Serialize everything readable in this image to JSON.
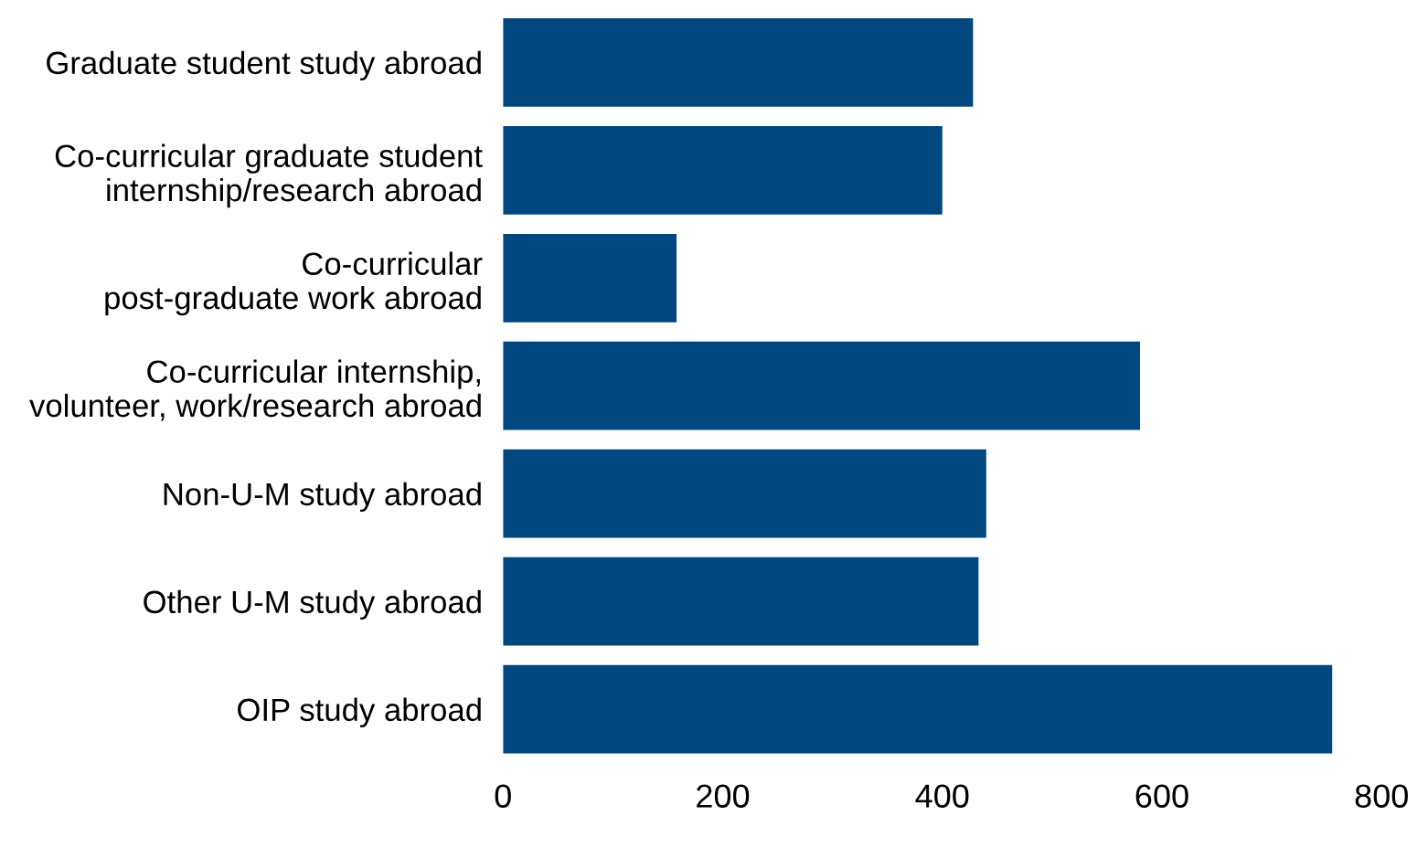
{
  "chart_data": {
    "type": "bar",
    "orientation": "horizontal",
    "categories": [
      "Graduate student study abroad",
      "Co-curricular graduate student\ninternship/research abroad",
      "Co-curricular\npost-graduate work abroad",
      "Co-curricular internship,\nvolunteer, work/research abroad",
      "Non-U-M study abroad",
      "Other U-M study abroad",
      "OIP study abroad"
    ],
    "values": [
      428,
      400,
      158,
      580,
      440,
      433,
      755
    ],
    "color": "#00467f",
    "xlim": [
      0,
      800
    ],
    "xticks": [
      0,
      200,
      400,
      600,
      800
    ],
    "grid": false,
    "legend": false
  }
}
